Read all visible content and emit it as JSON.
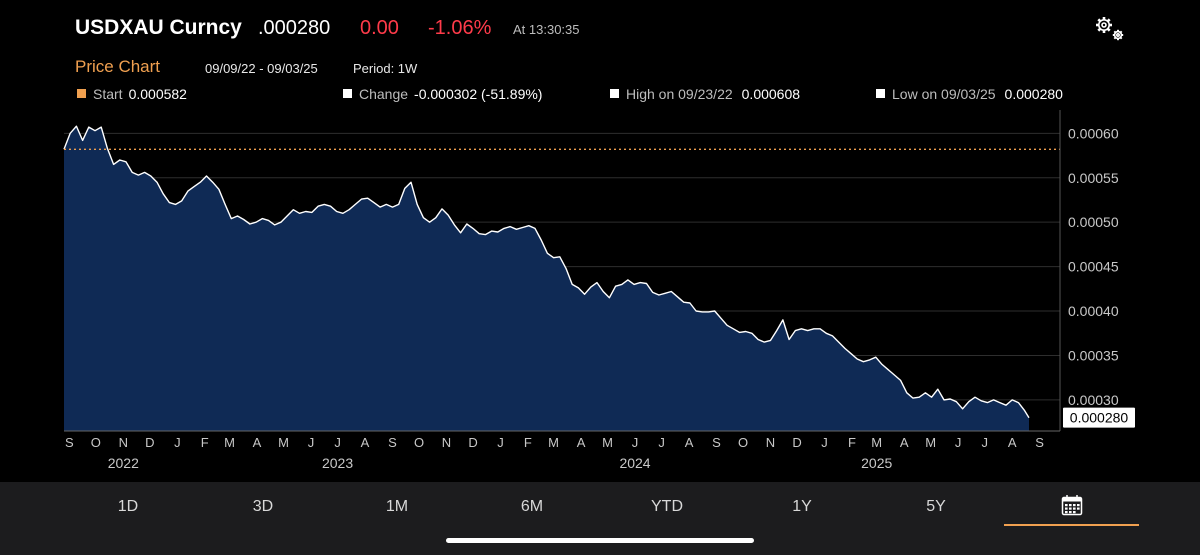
{
  "header": {
    "ticker": "USDXAU Curncy",
    "price": ".000280",
    "change": "0.00",
    "change_pct": "-1.06%",
    "as_of": "At 13:30:35",
    "settings_icon": "gear-icon"
  },
  "subheader": {
    "section": "Price Chart",
    "range": "09/09/22 - 09/03/25",
    "period": "Period: 1W"
  },
  "stats": {
    "start": {
      "label": "Start",
      "value": "0.000582"
    },
    "change": {
      "label": "Change",
      "value": "-0.000302 (-51.89%)"
    },
    "high": {
      "label": "High on 09/23/22",
      "value": "0.000608"
    },
    "low": {
      "label": "Low on 09/03/25",
      "value": "0.000280"
    }
  },
  "colors": {
    "accent": "#f0a050",
    "negative": "#ff3b4a",
    "area_fill": "#0f2a55",
    "line": "#ffffff"
  },
  "chart_data": {
    "type": "area",
    "x_start": "2022-09-09",
    "x_end": "2025-09-03",
    "ylim": [
      0.000265,
      0.000615
    ],
    "y_ticks": [
      0.0003,
      0.00035,
      0.0004,
      0.00045,
      0.0005,
      0.00055,
      0.0006
    ],
    "y_tick_labels": [
      "0.00030",
      "0.00035",
      "0.00040",
      "0.00045",
      "0.00050",
      "0.00055",
      "0.00060"
    ],
    "reference_line": {
      "value": 0.000582,
      "style": "dotted",
      "color": "#f0a050"
    },
    "last_value_label": "0.000280",
    "grid": true,
    "month_ticks": [
      {
        "date": "2022-09-15",
        "label": "S"
      },
      {
        "date": "2022-10-15",
        "label": "O"
      },
      {
        "date": "2022-11-15",
        "label": "N"
      },
      {
        "date": "2022-12-15",
        "label": "D"
      },
      {
        "date": "2023-01-15",
        "label": "J"
      },
      {
        "date": "2023-02-15",
        "label": "F"
      },
      {
        "date": "2023-03-15",
        "label": "M"
      },
      {
        "date": "2023-04-15",
        "label": "A"
      },
      {
        "date": "2023-05-15",
        "label": "M"
      },
      {
        "date": "2023-06-15",
        "label": "J"
      },
      {
        "date": "2023-07-15",
        "label": "J"
      },
      {
        "date": "2023-08-15",
        "label": "A"
      },
      {
        "date": "2023-09-15",
        "label": "S"
      },
      {
        "date": "2023-10-15",
        "label": "O"
      },
      {
        "date": "2023-11-15",
        "label": "N"
      },
      {
        "date": "2023-12-15",
        "label": "D"
      },
      {
        "date": "2024-01-15",
        "label": "J"
      },
      {
        "date": "2024-02-15",
        "label": "F"
      },
      {
        "date": "2024-03-15",
        "label": "M"
      },
      {
        "date": "2024-04-15",
        "label": "A"
      },
      {
        "date": "2024-05-15",
        "label": "M"
      },
      {
        "date": "2024-06-15",
        "label": "J"
      },
      {
        "date": "2024-07-15",
        "label": "J"
      },
      {
        "date": "2024-08-15",
        "label": "A"
      },
      {
        "date": "2024-09-15",
        "label": "S"
      },
      {
        "date": "2024-10-15",
        "label": "O"
      },
      {
        "date": "2024-11-15",
        "label": "N"
      },
      {
        "date": "2024-12-15",
        "label": "D"
      },
      {
        "date": "2025-01-15",
        "label": "J"
      },
      {
        "date": "2025-02-15",
        "label": "F"
      },
      {
        "date": "2025-03-15",
        "label": "M"
      },
      {
        "date": "2025-04-15",
        "label": "A"
      },
      {
        "date": "2025-05-15",
        "label": "M"
      },
      {
        "date": "2025-06-15",
        "label": "J"
      },
      {
        "date": "2025-07-15",
        "label": "J"
      },
      {
        "date": "2025-08-15",
        "label": "A"
      },
      {
        "date": "2025-09-15",
        "label": "S"
      }
    ],
    "year_labels": [
      {
        "date": "2022-11-15",
        "label": "2022"
      },
      {
        "date": "2023-07-15",
        "label": "2023"
      },
      {
        "date": "2024-06-15",
        "label": "2024"
      },
      {
        "date": "2025-03-15",
        "label": "2025"
      }
    ],
    "points": [
      [
        "2022-09-09",
        0.000582
      ],
      [
        "2022-09-16",
        0.0006
      ],
      [
        "2022-09-23",
        0.000608
      ],
      [
        "2022-09-30",
        0.000592
      ],
      [
        "2022-10-07",
        0.000607
      ],
      [
        "2022-10-14",
        0.000603
      ],
      [
        "2022-10-21",
        0.000607
      ],
      [
        "2022-10-28",
        0.000583
      ],
      [
        "2022-11-04",
        0.000565
      ],
      [
        "2022-11-11",
        0.00057
      ],
      [
        "2022-11-18",
        0.000568
      ],
      [
        "2022-11-25",
        0.000556
      ],
      [
        "2022-12-02",
        0.000553
      ],
      [
        "2022-12-09",
        0.000556
      ],
      [
        "2022-12-16",
        0.000552
      ],
      [
        "2022-12-23",
        0.000545
      ],
      [
        "2022-12-30",
        0.000532
      ],
      [
        "2023-01-06",
        0.000522
      ],
      [
        "2023-01-13",
        0.00052
      ],
      [
        "2023-01-20",
        0.000524
      ],
      [
        "2023-01-27",
        0.000535
      ],
      [
        "2023-02-03",
        0.00054
      ],
      [
        "2023-02-10",
        0.000545
      ],
      [
        "2023-02-17",
        0.000552
      ],
      [
        "2023-02-24",
        0.000545
      ],
      [
        "2023-03-03",
        0.000537
      ],
      [
        "2023-03-10",
        0.00052
      ],
      [
        "2023-03-17",
        0.000504
      ],
      [
        "2023-03-24",
        0.000507
      ],
      [
        "2023-03-31",
        0.000503
      ],
      [
        "2023-04-07",
        0.000498
      ],
      [
        "2023-04-14",
        0.0005
      ],
      [
        "2023-04-21",
        0.000504
      ],
      [
        "2023-04-28",
        0.000502
      ],
      [
        "2023-05-05",
        0.000497
      ],
      [
        "2023-05-12",
        0.0005
      ],
      [
        "2023-05-19",
        0.000507
      ],
      [
        "2023-05-26",
        0.000514
      ],
      [
        "2023-06-02",
        0.00051
      ],
      [
        "2023-06-09",
        0.000512
      ],
      [
        "2023-06-16",
        0.000511
      ],
      [
        "2023-06-23",
        0.000518
      ],
      [
        "2023-06-30",
        0.00052
      ],
      [
        "2023-07-07",
        0.000518
      ],
      [
        "2023-07-14",
        0.000512
      ],
      [
        "2023-07-21",
        0.00051
      ],
      [
        "2023-07-28",
        0.000514
      ],
      [
        "2023-08-04",
        0.00052
      ],
      [
        "2023-08-11",
        0.000526
      ],
      [
        "2023-08-18",
        0.000527
      ],
      [
        "2023-08-25",
        0.000522
      ],
      [
        "2023-09-01",
        0.000517
      ],
      [
        "2023-09-08",
        0.00052
      ],
      [
        "2023-09-15",
        0.000517
      ],
      [
        "2023-09-22",
        0.00052
      ],
      [
        "2023-09-29",
        0.000538
      ],
      [
        "2023-10-06",
        0.000545
      ],
      [
        "2023-10-13",
        0.00052
      ],
      [
        "2023-10-20",
        0.000505
      ],
      [
        "2023-10-27",
        0.0005
      ],
      [
        "2023-11-03",
        0.000505
      ],
      [
        "2023-11-10",
        0.000515
      ],
      [
        "2023-11-17",
        0.000508
      ],
      [
        "2023-11-24",
        0.000497
      ],
      [
        "2023-12-01",
        0.000488
      ],
      [
        "2023-12-08",
        0.000498
      ],
      [
        "2023-12-15",
        0.000493
      ],
      [
        "2023-12-22",
        0.000487
      ],
      [
        "2023-12-29",
        0.000486
      ],
      [
        "2024-01-05",
        0.00049
      ],
      [
        "2024-01-12",
        0.000489
      ],
      [
        "2024-01-19",
        0.000493
      ],
      [
        "2024-01-26",
        0.000495
      ],
      [
        "2024-02-02",
        0.000492
      ],
      [
        "2024-02-09",
        0.000494
      ],
      [
        "2024-02-16",
        0.000496
      ],
      [
        "2024-02-23",
        0.000493
      ],
      [
        "2024-03-01",
        0.00048
      ],
      [
        "2024-03-08",
        0.000465
      ],
      [
        "2024-03-15",
        0.00046
      ],
      [
        "2024-03-22",
        0.000461
      ],
      [
        "2024-03-29",
        0.000448
      ],
      [
        "2024-04-05",
        0.00043
      ],
      [
        "2024-04-12",
        0.000426
      ],
      [
        "2024-04-19",
        0.000419
      ],
      [
        "2024-04-26",
        0.000427
      ],
      [
        "2024-05-03",
        0.000432
      ],
      [
        "2024-05-10",
        0.000422
      ],
      [
        "2024-05-17",
        0.000415
      ],
      [
        "2024-05-24",
        0.000428
      ],
      [
        "2024-05-31",
        0.00043
      ],
      [
        "2024-06-07",
        0.000435
      ],
      [
        "2024-06-14",
        0.00043
      ],
      [
        "2024-06-21",
        0.000432
      ],
      [
        "2024-06-28",
        0.000431
      ],
      [
        "2024-07-05",
        0.000421
      ],
      [
        "2024-07-12",
        0.000418
      ],
      [
        "2024-07-19",
        0.00042
      ],
      [
        "2024-07-26",
        0.000422
      ],
      [
        "2024-08-02",
        0.000416
      ],
      [
        "2024-08-09",
        0.00041
      ],
      [
        "2024-08-16",
        0.000409
      ],
      [
        "2024-08-23",
        0.0004
      ],
      [
        "2024-08-30",
        0.000399
      ],
      [
        "2024-09-06",
        0.000399
      ],
      [
        "2024-09-13",
        0.0004
      ],
      [
        "2024-09-20",
        0.000392
      ],
      [
        "2024-09-27",
        0.000384
      ],
      [
        "2024-10-04",
        0.00038
      ],
      [
        "2024-10-11",
        0.000376
      ],
      [
        "2024-10-18",
        0.000377
      ],
      [
        "2024-10-25",
        0.000375
      ],
      [
        "2024-11-01",
        0.000368
      ],
      [
        "2024-11-08",
        0.000365
      ],
      [
        "2024-11-15",
        0.000367
      ],
      [
        "2024-11-22",
        0.000378
      ],
      [
        "2024-11-29",
        0.00039
      ],
      [
        "2024-12-06",
        0.000368
      ],
      [
        "2024-12-13",
        0.000378
      ],
      [
        "2024-12-20",
        0.00038
      ],
      [
        "2024-12-27",
        0.000378
      ],
      [
        "2025-01-03",
        0.00038
      ],
      [
        "2025-01-10",
        0.00038
      ],
      [
        "2025-01-17",
        0.000375
      ],
      [
        "2025-01-24",
        0.000372
      ],
      [
        "2025-01-31",
        0.000365
      ],
      [
        "2025-02-07",
        0.000358
      ],
      [
        "2025-02-14",
        0.000352
      ],
      [
        "2025-02-21",
        0.000346
      ],
      [
        "2025-02-28",
        0.000343
      ],
      [
        "2025-03-07",
        0.000345
      ],
      [
        "2025-03-14",
        0.000348
      ],
      [
        "2025-03-21",
        0.00034
      ],
      [
        "2025-03-28",
        0.000334
      ],
      [
        "2025-04-04",
        0.000328
      ],
      [
        "2025-04-11",
        0.000322
      ],
      [
        "2025-04-18",
        0.000308
      ],
      [
        "2025-04-25",
        0.000302
      ],
      [
        "2025-05-02",
        0.000303
      ],
      [
        "2025-05-09",
        0.000308
      ],
      [
        "2025-05-16",
        0.000303
      ],
      [
        "2025-05-23",
        0.000312
      ],
      [
        "2025-05-30",
        0.0003
      ],
      [
        "2025-06-06",
        0.000301
      ],
      [
        "2025-06-13",
        0.000298
      ],
      [
        "2025-06-20",
        0.00029
      ],
      [
        "2025-06-27",
        0.000298
      ],
      [
        "2025-07-04",
        0.000303
      ],
      [
        "2025-07-11",
        0.000299
      ],
      [
        "2025-07-18",
        0.000297
      ],
      [
        "2025-07-25",
        0.0003
      ],
      [
        "2025-08-01",
        0.000297
      ],
      [
        "2025-08-08",
        0.000294
      ],
      [
        "2025-08-15",
        0.0003
      ],
      [
        "2025-08-22",
        0.000297
      ],
      [
        "2025-08-29",
        0.000288
      ],
      [
        "2025-09-03",
        0.00028
      ]
    ]
  },
  "tabs": {
    "items": [
      {
        "label": "1D"
      },
      {
        "label": "3D"
      },
      {
        "label": "1M"
      },
      {
        "label": "6M"
      },
      {
        "label": "YTD"
      },
      {
        "label": "1Y"
      },
      {
        "label": "5Y"
      }
    ],
    "custom_icon": "calendar-icon"
  }
}
